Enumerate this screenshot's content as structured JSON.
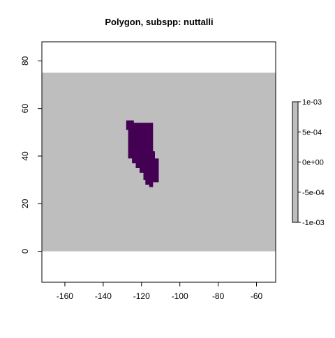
{
  "chart_data": {
    "type": "heatmap",
    "title": "Polygon, subspp: nuttalli",
    "xlabel": "",
    "ylabel": "",
    "xlim": [
      -172,
      -50
    ],
    "ylim": [
      -13,
      88
    ],
    "x_ticks": [
      -160,
      -140,
      -120,
      -100,
      -80,
      -60
    ],
    "x_tick_labels": [
      "-160",
      "-140",
      "-120",
      "-100",
      "-80",
      "-60"
    ],
    "y_ticks": [
      0,
      20,
      40,
      60,
      80
    ],
    "y_tick_labels": [
      "0",
      "20",
      "40",
      "60",
      "80"
    ],
    "raster_extent": {
      "lon": [
        -172,
        -50
      ],
      "lat": [
        0,
        75
      ]
    },
    "background_color": "#bebebe",
    "polygon_color": "#440154",
    "polygon_label": "nuttalli",
    "polygon": [
      [
        -128,
        55
      ],
      [
        -124,
        55
      ],
      [
        -124,
        54
      ],
      [
        -114,
        54
      ],
      [
        -114,
        42
      ],
      [
        -113,
        42
      ],
      [
        -113,
        39
      ],
      [
        -111,
        39
      ],
      [
        -111,
        29
      ],
      [
        -114,
        29
      ],
      [
        -114,
        27
      ],
      [
        -116,
        27
      ],
      [
        -116,
        28
      ],
      [
        -118,
        28
      ],
      [
        -118,
        30
      ],
      [
        -119,
        30
      ],
      [
        -119,
        33
      ],
      [
        -121,
        33
      ],
      [
        -121,
        35
      ],
      [
        -123,
        35
      ],
      [
        -123,
        37
      ],
      [
        -125,
        37
      ],
      [
        -125,
        39
      ],
      [
        -127,
        39
      ],
      [
        -127,
        51
      ],
      [
        -128,
        51
      ]
    ],
    "legend": {
      "position": "right",
      "ticks": [
        0.001,
        0.0005,
        0,
        -0.0005,
        -0.001
      ],
      "tick_labels": [
        "1e-03",
        "5e-04",
        "0e+00",
        "-5e-04",
        "-1e-03"
      ],
      "color": "#bebebe"
    },
    "grid": false
  }
}
